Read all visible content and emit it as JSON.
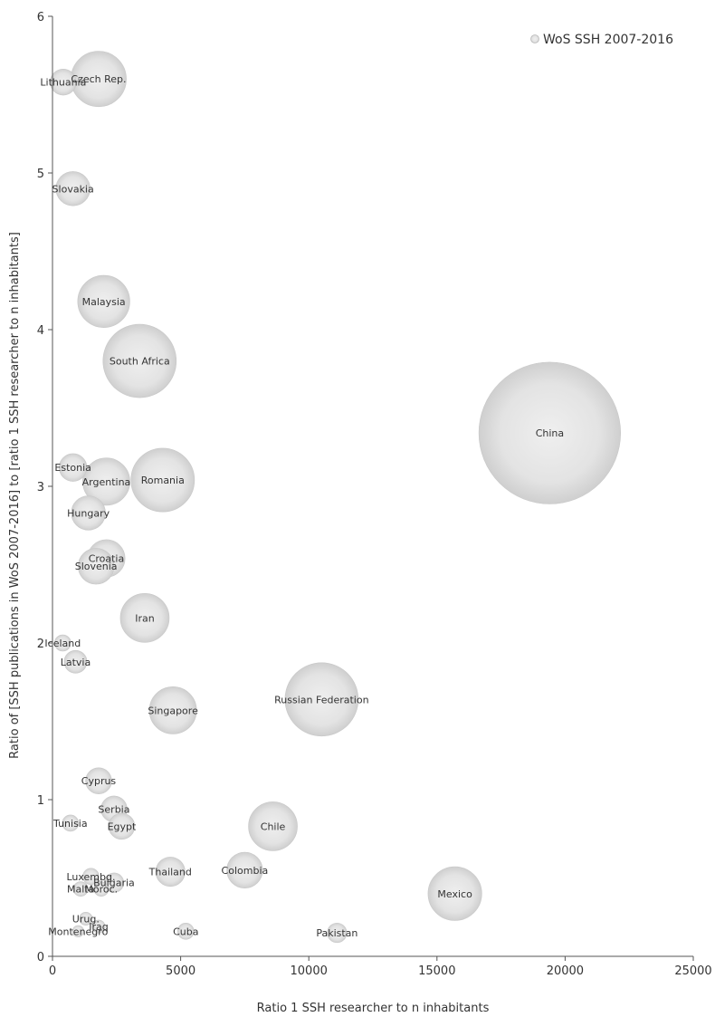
{
  "chart_data": {
    "type": "scatter",
    "title": "",
    "xlabel": "Ratio 1 SSH researcher to n inhabitants",
    "ylabel": "Ratio of [SSH publications in WoS 2007-2016] to [ratio 1 SSH researcher to n inhabitants]",
    "xlim": [
      0,
      25000
    ],
    "ylim": [
      0,
      6
    ],
    "x_ticks": [
      0,
      5000,
      10000,
      15000,
      20000,
      25000
    ],
    "y_ticks": [
      0,
      1,
      2,
      3,
      4,
      5,
      6
    ],
    "grid": false,
    "legend": {
      "position": "top-right",
      "label": "WoS SSH 2007-2016"
    },
    "bubble_color": "#d9d9d9",
    "series": [
      {
        "name": "WoS SSH 2007-2016",
        "points": [
          {
            "label": "Lithuania",
            "x": 420,
            "y": 5.58,
            "size": 0.16
          },
          {
            "label": "Czech Rep.",
            "x": 1800,
            "y": 5.6,
            "size": 0.34
          },
          {
            "label": "Slovakia",
            "x": 800,
            "y": 4.9,
            "size": 0.21
          },
          {
            "label": "Malaysia",
            "x": 2000,
            "y": 4.18,
            "size": 0.32
          },
          {
            "label": "South Africa",
            "x": 3400,
            "y": 3.8,
            "size": 0.45
          },
          {
            "label": "China",
            "x": 19400,
            "y": 3.34,
            "size": 0.87
          },
          {
            "label": "Estonia",
            "x": 800,
            "y": 3.12,
            "size": 0.17
          },
          {
            "label": "Argentina",
            "x": 2100,
            "y": 3.03,
            "size": 0.29
          },
          {
            "label": "Romania",
            "x": 4300,
            "y": 3.04,
            "size": 0.39
          },
          {
            "label": "Hungary",
            "x": 1400,
            "y": 2.83,
            "size": 0.21
          },
          {
            "label": "Croatia",
            "x": 2100,
            "y": 2.54,
            "size": 0.23
          },
          {
            "label": "Slovenia",
            "x": 1700,
            "y": 2.49,
            "size": 0.22
          },
          {
            "label": "Iran",
            "x": 3600,
            "y": 2.16,
            "size": 0.3
          },
          {
            "label": "Iceland",
            "x": 400,
            "y": 2.0,
            "size": 0.1
          },
          {
            "label": "Latvia",
            "x": 900,
            "y": 1.88,
            "size": 0.14
          },
          {
            "label": "Singapore",
            "x": 4700,
            "y": 1.57,
            "size": 0.29
          },
          {
            "label": "Russian Federation",
            "x": 10500,
            "y": 1.64,
            "size": 0.45
          },
          {
            "label": "Cyprus",
            "x": 1800,
            "y": 1.12,
            "size": 0.16
          },
          {
            "label": "Serbia",
            "x": 2400,
            "y": 0.94,
            "size": 0.16
          },
          {
            "label": "Egypt",
            "x": 2700,
            "y": 0.83,
            "size": 0.16
          },
          {
            "label": "Tunisia",
            "x": 700,
            "y": 0.85,
            "size": 0.1
          },
          {
            "label": "Chile",
            "x": 8600,
            "y": 0.83,
            "size": 0.3
          },
          {
            "label": "Thailand",
            "x": 4600,
            "y": 0.54,
            "size": 0.18
          },
          {
            "label": "Colombia",
            "x": 7500,
            "y": 0.55,
            "size": 0.22
          },
          {
            "label": "Luxembg.",
            "x": 1500,
            "y": 0.51,
            "size": 0.1
          },
          {
            "label": "Bulgaria",
            "x": 2400,
            "y": 0.47,
            "size": 0.12
          },
          {
            "label": "Malta",
            "x": 1100,
            "y": 0.43,
            "size": 0.09
          },
          {
            "label": "Moroc.",
            "x": 1900,
            "y": 0.43,
            "size": 0.09
          },
          {
            "label": "Mexico",
            "x": 15700,
            "y": 0.4,
            "size": 0.33
          },
          {
            "label": "Urug.",
            "x": 1300,
            "y": 0.24,
            "size": 0.08
          },
          {
            "label": "Iraq",
            "x": 1800,
            "y": 0.19,
            "size": 0.08
          },
          {
            "label": "Montenegro",
            "x": 1000,
            "y": 0.16,
            "size": 0.07
          },
          {
            "label": "Cuba",
            "x": 5200,
            "y": 0.16,
            "size": 0.1
          },
          {
            "label": "Pakistan",
            "x": 11100,
            "y": 0.15,
            "size": 0.12
          }
        ]
      }
    ]
  }
}
